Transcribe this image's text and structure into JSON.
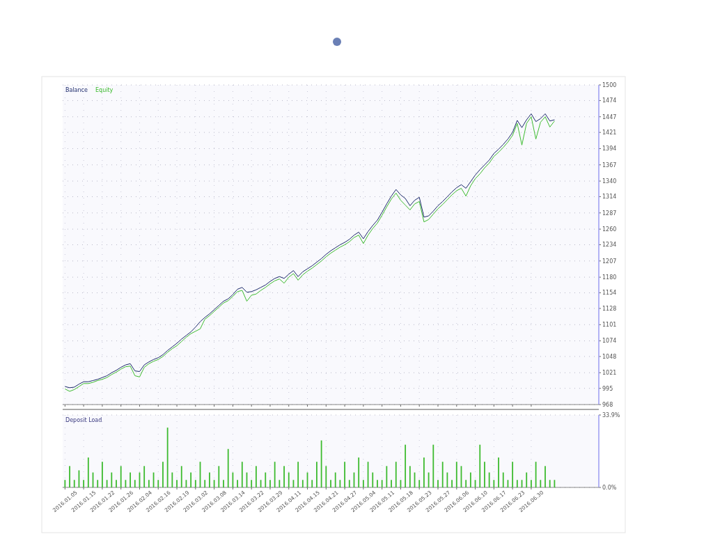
{
  "chart_data": [
    {
      "type": "line",
      "legend": "top left",
      "grid": true,
      "tick_labels": "y",
      "line_style": "solid",
      "categories": [
        "2016.01.05",
        null,
        null,
        null,
        "2016.01.15",
        null,
        null,
        null,
        "2016.01.22",
        null,
        null,
        null,
        "2016.01.26",
        null,
        null,
        null,
        "2016.02.04",
        null,
        null,
        null,
        "2016.02.16",
        null,
        null,
        null,
        "2016.02.19",
        null,
        null,
        null,
        "2016.03.02",
        null,
        null,
        null,
        "2016.03.08",
        null,
        null,
        null,
        "2016.03.14",
        null,
        null,
        null,
        "2016.03.22",
        null,
        null,
        null,
        "2016.03.29",
        null,
        null,
        null,
        "2016.04.11",
        null,
        null,
        null,
        "2016.04.15",
        null,
        null,
        null,
        "2016.04.21",
        null,
        null,
        null,
        "2016.04.27",
        null,
        null,
        null,
        "2016.05.04",
        null,
        null,
        null,
        "2016.05.11",
        null,
        null,
        null,
        "2016.05.18",
        null,
        null,
        null,
        "2016.05.23",
        null,
        null,
        null,
        "2016.05.27",
        null,
        null,
        null,
        "2016.06.06",
        null,
        null,
        null,
        "2016.06.10",
        null,
        null,
        null,
        "2016.06.17",
        null,
        null,
        null,
        "2016.06.23",
        null,
        null,
        null,
        "2016.06.30",
        null,
        null,
        null,
        null,
        null,
        null,
        null,
        null,
        null,
        null,
        null,
        null,
        null,
        null
      ],
      "ylim": [
        968,
        1500
      ],
      "yticks": [
        968,
        995,
        1021,
        1048,
        1074,
        1101,
        1128,
        1154,
        1180,
        1207,
        1234,
        1260,
        1287,
        1314,
        1340,
        1367,
        1394,
        1421,
        1447,
        1474,
        1500
      ],
      "series": [
        {
          "name": "Balance",
          "color": "#1c2a6b",
          "values": [
            998,
            996,
            997,
            1002,
            1006,
            1006,
            1008,
            1010,
            1013,
            1016,
            1021,
            1025,
            1030,
            1034,
            1036,
            1024,
            1023,
            1034,
            1039,
            1043,
            1046,
            1051,
            1058,
            1064,
            1070,
            1077,
            1083,
            1089,
            1097,
            1106,
            1113,
            1119,
            1126,
            1133,
            1140,
            1144,
            1151,
            1160,
            1163,
            1155,
            1156,
            1159,
            1163,
            1167,
            1173,
            1178,
            1181,
            1178,
            1185,
            1191,
            1181,
            1189,
            1194,
            1199,
            1205,
            1211,
            1218,
            1224,
            1229,
            1234,
            1238,
            1243,
            1250,
            1255,
            1244,
            1256,
            1266,
            1275,
            1288,
            1302,
            1315,
            1326,
            1317,
            1311,
            1299,
            1308,
            1313,
            1280,
            1282,
            1290,
            1299,
            1306,
            1314,
            1322,
            1329,
            1334,
            1328,
            1339,
            1350,
            1359,
            1367,
            1375,
            1386,
            1393,
            1401,
            1410,
            1421,
            1441,
            1429,
            1442,
            1452,
            1439,
            1444,
            1452,
            1440,
            1442,
            null,
            null,
            null,
            null,
            null,
            null,
            null,
            null,
            null
          ]
        },
        {
          "name": "Equity",
          "color": "#3dbb2f",
          "values": [
            994,
            990,
            993,
            998,
            1003,
            1003,
            1005,
            1008,
            1010,
            1013,
            1018,
            1022,
            1027,
            1031,
            1032,
            1016,
            1014,
            1030,
            1036,
            1040,
            1043,
            1048,
            1055,
            1061,
            1066,
            1073,
            1080,
            1086,
            1090,
            1094,
            1110,
            1116,
            1123,
            1130,
            1137,
            1141,
            1148,
            1156,
            1158,
            1140,
            1150,
            1152,
            1158,
            1163,
            1169,
            1174,
            1177,
            1170,
            1180,
            1186,
            1175,
            1184,
            1190,
            1195,
            1201,
            1207,
            1214,
            1220,
            1225,
            1230,
            1234,
            1239,
            1246,
            1250,
            1236,
            1250,
            1261,
            1270,
            1283,
            1297,
            1310,
            1320,
            1308,
            1300,
            1292,
            1302,
            1306,
            1272,
            1276,
            1285,
            1294,
            1301,
            1309,
            1317,
            1324,
            1328,
            1315,
            1332,
            1344,
            1352,
            1362,
            1370,
            1381,
            1388,
            1396,
            1405,
            1416,
            1436,
            1400,
            1436,
            1447,
            1410,
            1438,
            1447,
            1430,
            1440,
            null,
            null,
            null,
            null,
            null,
            null,
            null,
            null,
            null
          ]
        }
      ]
    },
    {
      "type": "bar",
      "title": "Deposit Load",
      "grid": true,
      "color": "#3dbb2f",
      "categories": [
        "2016.01.05",
        null,
        null,
        null,
        "2016.01.15",
        null,
        null,
        null,
        "2016.01.22",
        null,
        null,
        null,
        "2016.01.26",
        null,
        null,
        null,
        "2016.02.04",
        null,
        null,
        null,
        "2016.02.16",
        null,
        null,
        null,
        "2016.02.19",
        null,
        null,
        null,
        "2016.03.02",
        null,
        null,
        null,
        "2016.03.08",
        null,
        null,
        null,
        "2016.03.14",
        null,
        null,
        null,
        "2016.03.22",
        null,
        null,
        null,
        "2016.03.29",
        null,
        null,
        null,
        "2016.04.11",
        null,
        null,
        null,
        "2016.04.15",
        null,
        null,
        null,
        "2016.04.21",
        null,
        null,
        null,
        "2016.04.27",
        null,
        null,
        null,
        "2016.05.04",
        null,
        null,
        null,
        "2016.05.11",
        null,
        null,
        null,
        "2016.05.18",
        null,
        null,
        null,
        "2016.05.23",
        null,
        null,
        null,
        "2016.05.27",
        null,
        null,
        null,
        "2016.06.06",
        null,
        null,
        null,
        "2016.06.10",
        null,
        null,
        null,
        "2016.06.17",
        null,
        null,
        null,
        "2016.06.23",
        null,
        null,
        null,
        "2016.06.30",
        null,
        null,
        null,
        null,
        null,
        null,
        null,
        null,
        null,
        null,
        null,
        null,
        null,
        null
      ],
      "ylim": [
        0,
        33.9
      ],
      "yticks": [
        {
          "value": 0,
          "label": "0.0%"
        },
        {
          "value": 33.9,
          "label": "33.9%"
        }
      ],
      "values": [
        3.5,
        10,
        3.5,
        8,
        3.5,
        14,
        7,
        3.5,
        12,
        3.5,
        7,
        3.5,
        10,
        3.5,
        7,
        3.5,
        7,
        10,
        3.5,
        7,
        3.5,
        12,
        28,
        7,
        3.5,
        10,
        3.5,
        7,
        3.5,
        12,
        3.5,
        7,
        3.5,
        10,
        3.5,
        18,
        7,
        3.5,
        12,
        7,
        3.5,
        10,
        3.5,
        7,
        3.5,
        12,
        3.5,
        10,
        7,
        3.5,
        12,
        3.5,
        7,
        3.5,
        12,
        22,
        10,
        3.5,
        7,
        3.5,
        12,
        3.5,
        7,
        14,
        3.5,
        12,
        7,
        3.5,
        3.5,
        10,
        3.5,
        12,
        3.5,
        20,
        10,
        7,
        3.5,
        14,
        7,
        20,
        3.5,
        12,
        7,
        3.5,
        12,
        10,
        3.5,
        7,
        3.5,
        20,
        12,
        7,
        3.5,
        14,
        7,
        3.5,
        12,
        3.5,
        3.5,
        7,
        3.5,
        12,
        3.5,
        10,
        3.5,
        3.5,
        null,
        null,
        null,
        null,
        null,
        null,
        null,
        null,
        null
      ]
    }
  ]
}
